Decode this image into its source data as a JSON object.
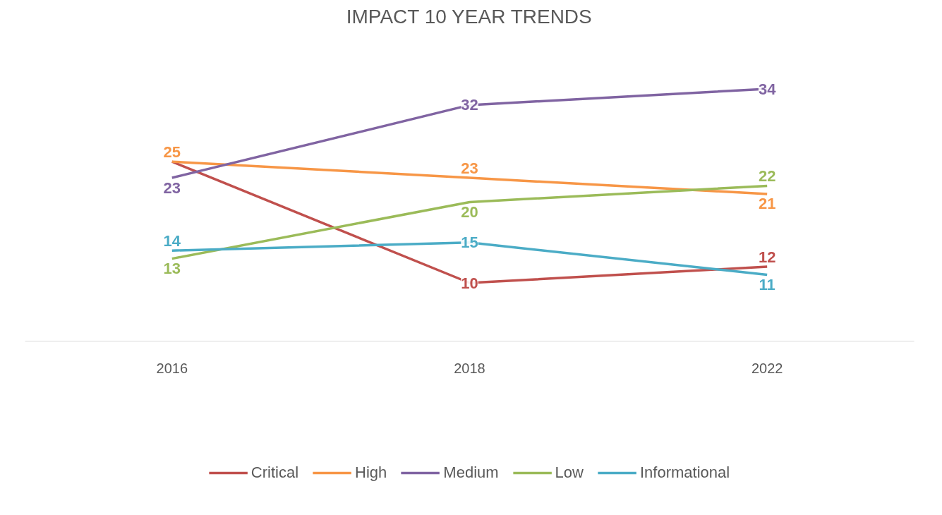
{
  "chart_data": {
    "type": "line",
    "title": "IMPACT 10 YEAR TRENDS",
    "categories": [
      "2016",
      "2018",
      "2022"
    ],
    "series": [
      {
        "name": "Critical",
        "color": "#c0504d",
        "values": [
          25,
          10,
          12
        ],
        "value_labels": [
          null,
          "10",
          "12"
        ]
      },
      {
        "name": "High",
        "color": "#f79646",
        "values": [
          25,
          23,
          21
        ]
      },
      {
        "name": "Medium",
        "color": "#8064a2",
        "values": [
          23,
          32,
          34
        ]
      },
      {
        "name": "Low",
        "color": "#9bbb59",
        "values": [
          13,
          20,
          22
        ]
      },
      {
        "name": "Informational",
        "color": "#4bacc6",
        "values": [
          14,
          15,
          11
        ]
      }
    ],
    "tick_labels": "x",
    "data_labels": true,
    "legend": "bottom",
    "grid": false,
    "line_style": "solid"
  }
}
